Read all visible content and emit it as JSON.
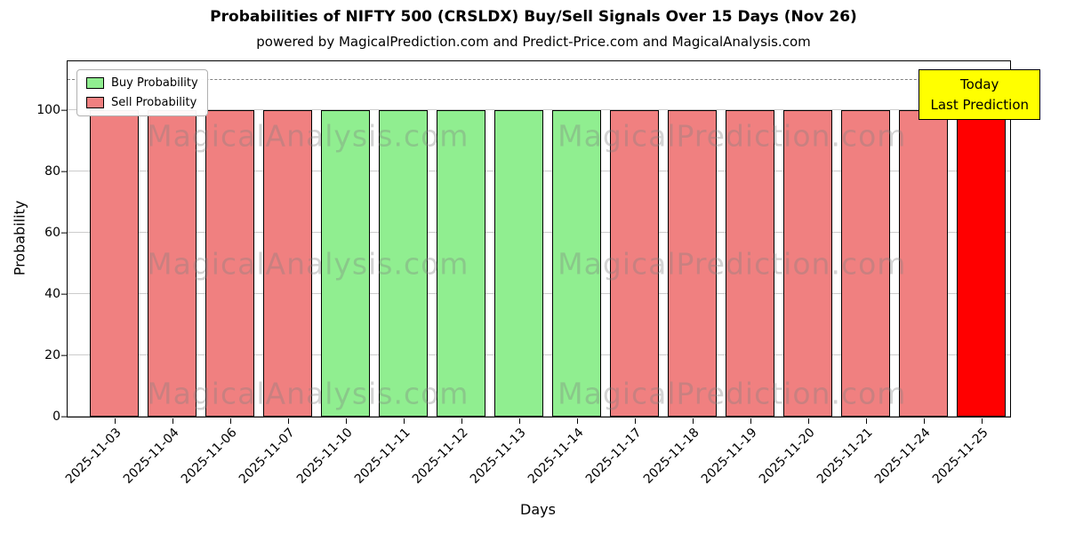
{
  "chart_data": {
    "type": "bar",
    "title": "Probabilities of NIFTY 500 (CRSLDX) Buy/Sell Signals Over 15 Days (Nov 26)",
    "subtitle": "powered by MagicalPrediction.com and Predict-Price.com and MagicalAnalysis.com",
    "xlabel": "Days",
    "ylabel": "Probability",
    "categories": [
      "2025-11-03",
      "2025-11-04",
      "2025-11-06",
      "2025-11-07",
      "2025-11-10",
      "2025-11-11",
      "2025-11-12",
      "2025-11-13",
      "2025-11-14",
      "2025-11-17",
      "2025-11-18",
      "2025-11-19",
      "2025-11-20",
      "2025-11-21",
      "2025-11-24",
      "2025-11-25"
    ],
    "values": [
      100,
      100,
      100,
      100,
      100,
      100,
      100,
      100,
      100,
      100,
      100,
      100,
      100,
      100,
      100,
      100
    ],
    "bar_types": [
      "sell",
      "sell",
      "sell",
      "sell",
      "buy",
      "buy",
      "buy",
      "buy",
      "buy",
      "sell",
      "sell",
      "sell",
      "sell",
      "sell",
      "sell",
      "today"
    ],
    "colors": {
      "buy": "#90ee90",
      "sell": "#f08080",
      "today": "#ff0000"
    },
    "ylim": [
      0,
      116
    ],
    "yticks": [
      0,
      20,
      40,
      60,
      80,
      100
    ],
    "dashed_line_y": 110,
    "grid": true,
    "legend_position": "upper left",
    "legend": [
      {
        "label": "Buy Probability",
        "color": "#90ee90"
      },
      {
        "label": "Sell Probability",
        "color": "#f08080"
      }
    ],
    "annotation": {
      "line1": "Today",
      "line2": "Last Prediction",
      "bg": "#ffff00"
    },
    "watermarks": [
      "MagicalAnalysis.com",
      "MagicalPrediction.com"
    ]
  }
}
